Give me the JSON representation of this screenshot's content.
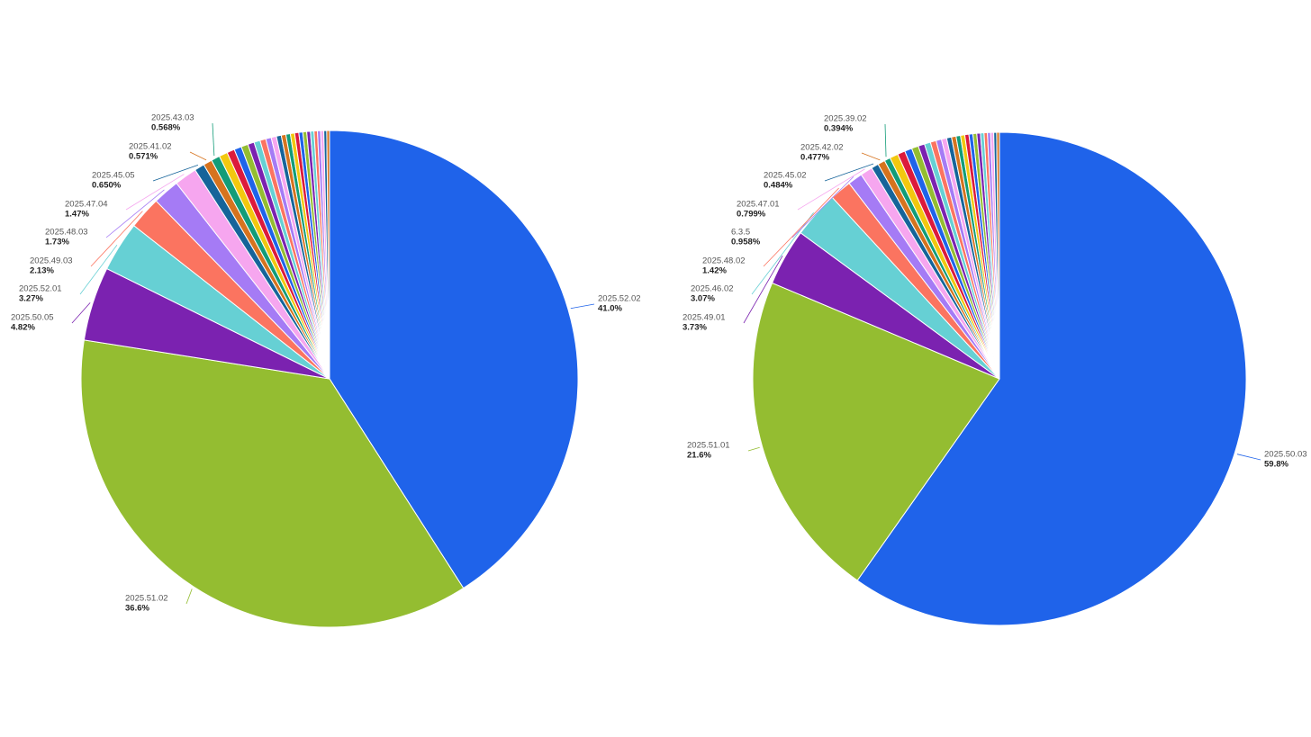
{
  "chart_data": [
    {
      "type": "pie",
      "categories": [
        "2025.52.02",
        "2025.51.02",
        "2025.50.05",
        "2025.52.01",
        "2025.49.03",
        "2025.48.03",
        "2025.47.04",
        "2025.45.05",
        "2025.41.02",
        "2025.43.03",
        null,
        null,
        null,
        null,
        null,
        null,
        null,
        null,
        null,
        null,
        null,
        null,
        null,
        null,
        null,
        null,
        null,
        null,
        null,
        null,
        null,
        null,
        null
      ],
      "values": [
        41.0,
        36.6,
        4.82,
        3.27,
        2.13,
        1.73,
        1.47,
        0.65,
        0.571,
        0.568,
        0.55,
        0.5,
        0.48,
        0.45,
        0.42,
        0.4,
        0.38,
        0.36,
        0.34,
        0.32,
        0.3,
        0.29,
        0.28,
        0.27,
        0.26,
        0.25,
        0.24,
        0.23,
        0.22,
        0.21,
        0.2,
        0.19,
        0.18
      ],
      "value_labels": [
        "41.0%",
        "36.6%",
        "4.82%",
        "3.27%",
        "2.13%",
        "1.73%",
        "1.47%",
        "0.650%",
        "0.571%",
        "0.568%",
        null,
        null,
        null,
        null,
        null,
        null,
        null,
        null,
        null,
        null,
        null,
        null,
        null,
        null,
        null,
        null,
        null,
        null,
        null,
        null,
        null,
        null,
        null
      ],
      "colors": [
        "#1f63ea",
        "#94bd31",
        "#7b22b0",
        "#66d0d4",
        "#fb7460",
        "#a57bf5",
        "#f6a6ef",
        "#16649a",
        "#d6731e",
        "#129c78",
        "#f2c80f",
        "#dc1a3c",
        "#1f63ea",
        "#94bd31",
        "#7b22b0",
        "#66d0d4",
        "#fb7460",
        "#a57bf5",
        "#f6a6ef",
        "#16649a",
        "#d6731e",
        "#129c78",
        "#f2c80f",
        "#dc1a3c",
        "#1f63ea",
        "#94bd31",
        "#7b22b0",
        "#66d0d4",
        "#fb7460",
        "#a57bf5",
        "#f6a6ef",
        "#16649a",
        "#d6731e"
      ]
    },
    {
      "type": "pie",
      "categories": [
        "2025.50.03",
        "2025.51.01",
        "2025.49.01",
        "2025.46.02",
        "2025.48.02",
        "6.3.5",
        "2025.47.01",
        "2025.45.02",
        "2025.42.02",
        "2025.39.02",
        null,
        null,
        null,
        null,
        null,
        null,
        null,
        null,
        null,
        null,
        null,
        null,
        null,
        null,
        null,
        null,
        null,
        null,
        null,
        null,
        null,
        null,
        null
      ],
      "values": [
        59.8,
        21.6,
        3.73,
        3.07,
        1.42,
        0.958,
        0.799,
        0.484,
        0.477,
        0.394,
        0.55,
        0.5,
        0.48,
        0.45,
        0.42,
        0.4,
        0.38,
        0.36,
        0.34,
        0.32,
        0.3,
        0.29,
        0.28,
        0.27,
        0.26,
        0.25,
        0.24,
        0.23,
        0.22,
        0.21,
        0.2,
        0.19,
        0.18
      ],
      "value_labels": [
        "59.8%",
        "21.6%",
        "3.73%",
        "3.07%",
        "1.42%",
        "0.958%",
        "0.799%",
        "0.484%",
        "0.477%",
        "0.394%",
        null,
        null,
        null,
        null,
        null,
        null,
        null,
        null,
        null,
        null,
        null,
        null,
        null,
        null,
        null,
        null,
        null,
        null,
        null,
        null,
        null,
        null,
        null
      ],
      "colors": [
        "#1f63ea",
        "#94bd31",
        "#7b22b0",
        "#66d0d4",
        "#fb7460",
        "#a57bf5",
        "#f6a6ef",
        "#16649a",
        "#d6731e",
        "#129c78",
        "#f2c80f",
        "#dc1a3c",
        "#1f63ea",
        "#94bd31",
        "#7b22b0",
        "#66d0d4",
        "#fb7460",
        "#a57bf5",
        "#f6a6ef",
        "#16649a",
        "#d6731e",
        "#129c78",
        "#f2c80f",
        "#dc1a3c",
        "#1f63ea",
        "#94bd31",
        "#7b22b0",
        "#66d0d4",
        "#fb7460",
        "#a57bf5",
        "#f6a6ef",
        "#16649a",
        "#d6731e"
      ]
    }
  ]
}
